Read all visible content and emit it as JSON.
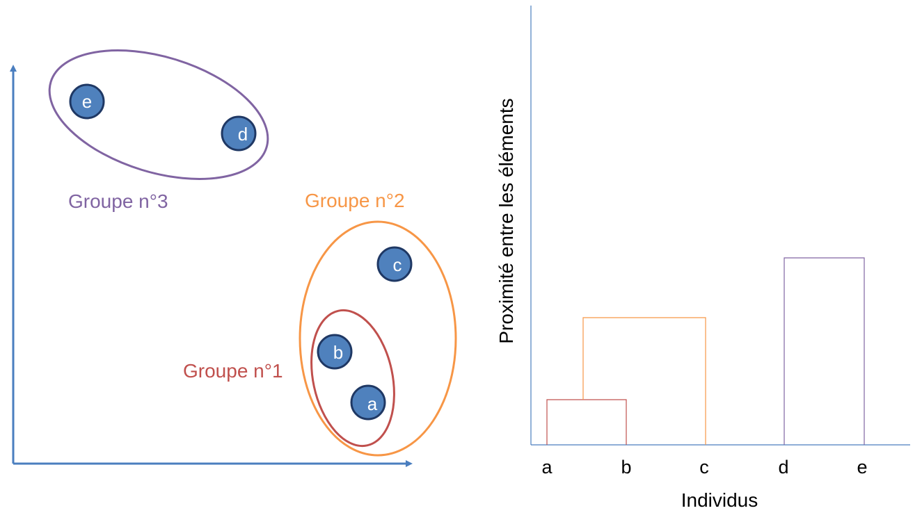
{
  "scatter": {
    "points": [
      {
        "label": "e"
      },
      {
        "label": "d"
      },
      {
        "label": "c"
      },
      {
        "label": "b"
      },
      {
        "label": "a"
      }
    ],
    "groups": [
      {
        "label": "Groupe n°3",
        "color": "#8064a2"
      },
      {
        "label": "Groupe n°2",
        "color": "#f79646"
      },
      {
        "label": "Groupe n°1",
        "color": "#c0504d"
      }
    ],
    "axis_color": "#4a7ebf",
    "point_color": "#4f81bd",
    "point_border": "#1f3864"
  },
  "dendrogram": {
    "ylabel": "Proximité entre les éléments",
    "xlabel": "Individus",
    "leaves": [
      "a",
      "b",
      "c",
      "d",
      "e"
    ],
    "axis_color": "#4a7ebf"
  }
}
